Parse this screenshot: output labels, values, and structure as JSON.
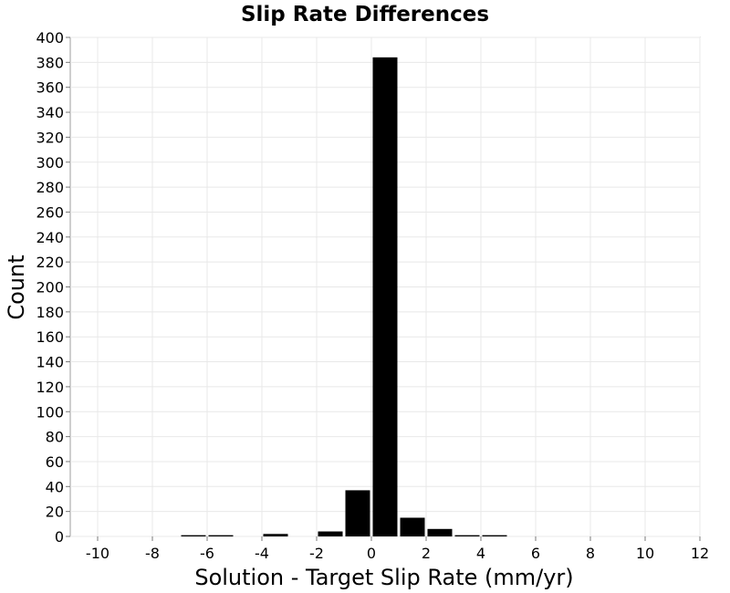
{
  "chart_data": {
    "type": "bar",
    "title": "Slip Rate Differences",
    "xlabel": "Solution - Target Slip Rate (mm/yr)",
    "ylabel": "Count",
    "xlim": [
      -11,
      12
    ],
    "ylim": [
      0,
      400
    ],
    "xticks": [
      -10,
      -8,
      -6,
      -4,
      -2,
      0,
      2,
      4,
      6,
      8,
      10,
      12
    ],
    "yticks": [
      0,
      20,
      40,
      60,
      80,
      100,
      120,
      140,
      160,
      180,
      200,
      220,
      240,
      260,
      280,
      300,
      320,
      340,
      360,
      380,
      400
    ],
    "bin_width": 1,
    "bins": [
      {
        "x": -6.5,
        "value": 1
      },
      {
        "x": -5.5,
        "value": 1
      },
      {
        "x": -3.5,
        "value": 2
      },
      {
        "x": -1.5,
        "value": 4
      },
      {
        "x": -0.5,
        "value": 37
      },
      {
        "x": 0.5,
        "value": 384
      },
      {
        "x": 1.5,
        "value": 15
      },
      {
        "x": 2.5,
        "value": 6
      },
      {
        "x": 3.5,
        "value": 1
      },
      {
        "x": 4.5,
        "value": 1
      }
    ],
    "bar_color": "#000000",
    "grid": true,
    "legend": "none"
  }
}
